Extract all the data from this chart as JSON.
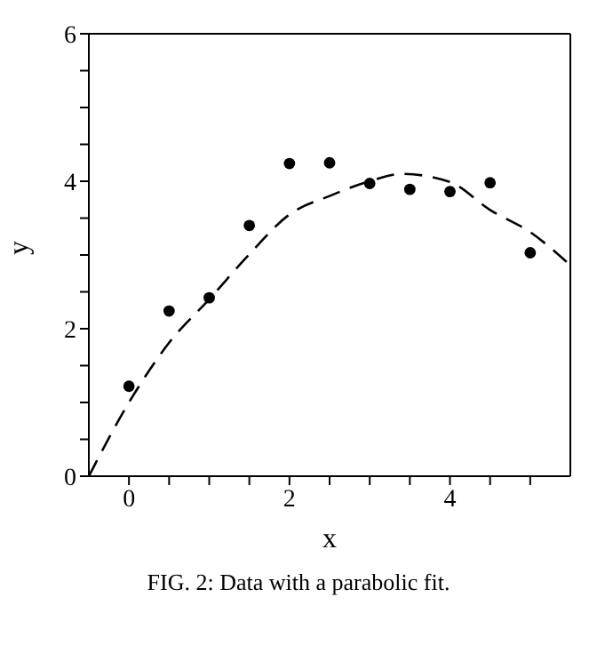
{
  "chart_data": {
    "type": "scatter",
    "xlabel": "x",
    "ylabel": "y",
    "annotations": [
      "FIG. 2: Data with a parabolic fit."
    ],
    "xlim": [
      -0.5,
      5.5
    ],
    "ylim": [
      0,
      6
    ],
    "xticks": [
      {
        "value": 0,
        "label": "0"
      },
      {
        "value": 0.5,
        "label": null
      },
      {
        "value": 1,
        "label": null
      },
      {
        "value": 1.5,
        "label": null
      },
      {
        "value": 2,
        "label": "2"
      },
      {
        "value": 2.5,
        "label": null
      },
      {
        "value": 3,
        "label": null
      },
      {
        "value": 3.5,
        "label": null
      },
      {
        "value": 4,
        "label": "4"
      },
      {
        "value": 4.5,
        "label": null
      },
      {
        "value": 5,
        "label": null
      }
    ],
    "yticks": [
      {
        "value": 0,
        "label": "0"
      },
      {
        "value": 0.5,
        "label": null
      },
      {
        "value": 1,
        "label": null
      },
      {
        "value": 1.5,
        "label": null
      },
      {
        "value": 2,
        "label": "2"
      },
      {
        "value": 2.5,
        "label": null
      },
      {
        "value": 3,
        "label": null
      },
      {
        "value": 3.5,
        "label": null
      },
      {
        "value": 4,
        "label": "4"
      },
      {
        "value": 4.5,
        "label": null
      },
      {
        "value": 5,
        "label": null
      },
      {
        "value": 5.5,
        "label": null
      },
      {
        "value": 6,
        "label": "6"
      }
    ],
    "series": [
      {
        "color": "#000000",
        "marker": "circle",
        "x": [
          0,
          0.5,
          1,
          1.5,
          2,
          2.5,
          3,
          3.5,
          4,
          4.5,
          5
        ],
        "values": [
          1.22,
          2.24,
          2.42,
          3.4,
          4.24,
          4.25,
          3.97,
          3.89,
          3.86,
          3.98,
          3.03
        ]
      },
      {
        "type": "line",
        "color": "#000000",
        "line_style": "dashed",
        "marker": "none",
        "x": [
          -0.5,
          0,
          0.5,
          1,
          1.5,
          2,
          2.5,
          3,
          3.4,
          4,
          4.5,
          5,
          5.5
        ],
        "values": [
          0,
          1.0,
          1.81,
          2.4,
          3.01,
          3.55,
          3.8,
          4.0,
          4.1,
          3.99,
          3.61,
          3.31,
          2.86
        ]
      }
    ]
  }
}
